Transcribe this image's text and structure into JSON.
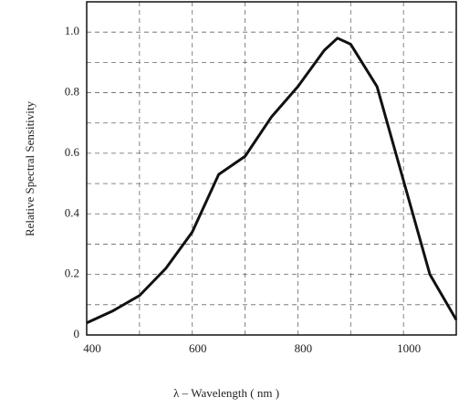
{
  "chart_data": {
    "type": "line",
    "x_label": "λ – Wavelength ( nm )",
    "y_label": "Relative Spectral Sensitivity",
    "x": [
      400,
      450,
      500,
      550,
      600,
      650,
      700,
      750,
      800,
      850,
      875,
      900,
      950,
      1000,
      1050,
      1100
    ],
    "series": [
      {
        "name": "Relative Spectral Sensitivity",
        "color": "#111111",
        "values": [
          0.04,
          0.08,
          0.13,
          0.22,
          0.34,
          0.53,
          0.59,
          0.72,
          0.82,
          0.94,
          0.98,
          0.96,
          0.82,
          0.51,
          0.2,
          0.05
        ]
      }
    ],
    "xlim": [
      400,
      1100
    ],
    "ylim": [
      0,
      1.1
    ],
    "xticks": [
      400,
      600,
      800,
      1000
    ],
    "x_minor_ticks": [
      500,
      700,
      900
    ],
    "yticks": [
      0,
      0.2,
      0.4,
      0.6,
      0.8,
      {
        "value": 1,
        "label": "1.0"
      }
    ],
    "y_minor_ticks": [
      0.1,
      0.3,
      0.5,
      0.7,
      0.9
    ],
    "grid": true
  }
}
